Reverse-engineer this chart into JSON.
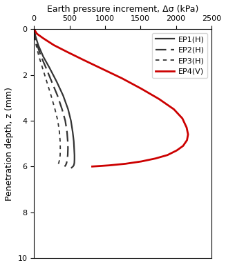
{
  "title": "Earth pressure increment, Δσ (kPa)",
  "ylabel": "Penetration depth, z (mm)",
  "xlim": [
    0,
    2500
  ],
  "ylim": [
    10,
    0
  ],
  "xticks": [
    0,
    500,
    1000,
    1500,
    2000,
    2500
  ],
  "yticks": [
    0,
    2,
    4,
    6,
    8,
    10
  ],
  "series": [
    {
      "label": "EP1(H)",
      "color": "#333333",
      "linestyle": "solid",
      "linewidth": 1.6,
      "x": [
        0,
        20,
        60,
        130,
        220,
        320,
        410,
        480,
        520,
        545,
        560,
        565,
        570,
        570,
        568,
        560,
        548,
        530
      ],
      "z": [
        0,
        0.3,
        0.7,
        1.2,
        1.7,
        2.3,
        2.9,
        3.5,
        4.0,
        4.5,
        4.9,
        5.2,
        5.5,
        5.7,
        5.85,
        5.95,
        6.0,
        6.05
      ]
    },
    {
      "label": "EP2(H)",
      "color": "#333333",
      "linestyle": "solid",
      "linewidth": 1.6,
      "dash_pattern": [
        7,
        3
      ],
      "x": [
        0,
        15,
        45,
        100,
        170,
        250,
        330,
        395,
        440,
        465,
        475,
        478,
        475,
        468,
        458,
        445,
        430
      ],
      "z": [
        0,
        0.3,
        0.7,
        1.2,
        1.7,
        2.3,
        2.9,
        3.5,
        4.0,
        4.5,
        4.9,
        5.2,
        5.5,
        5.7,
        5.85,
        5.95,
        6.0
      ]
    },
    {
      "label": "EP3(H)",
      "color": "#333333",
      "linestyle": "solid",
      "linewidth": 1.3,
      "dash_pattern": [
        3,
        3
      ],
      "x": [
        0,
        10,
        30,
        70,
        120,
        180,
        240,
        295,
        335,
        358,
        368,
        370,
        368,
        360,
        348,
        332,
        315
      ],
      "z": [
        0,
        0.3,
        0.7,
        1.2,
        1.7,
        2.3,
        2.9,
        3.5,
        4.0,
        4.5,
        4.9,
        5.2,
        5.5,
        5.7,
        5.85,
        5.95,
        6.0
      ]
    },
    {
      "label": "EP4(V)",
      "color": "#cc0000",
      "linestyle": "solid",
      "linewidth": 2.0,
      "x": [
        0,
        40,
        130,
        280,
        470,
        700,
        970,
        1240,
        1510,
        1760,
        1970,
        2090,
        2150,
        2170,
        2155,
        2100,
        2010,
        1880,
        1710,
        1510,
        1290,
        1060,
        820
      ],
      "z": [
        0,
        0.2,
        0.4,
        0.7,
        1.0,
        1.35,
        1.75,
        2.15,
        2.6,
        3.05,
        3.5,
        3.9,
        4.3,
        4.6,
        4.85,
        5.1,
        5.3,
        5.5,
        5.65,
        5.78,
        5.88,
        5.95,
        6.0
      ]
    }
  ]
}
